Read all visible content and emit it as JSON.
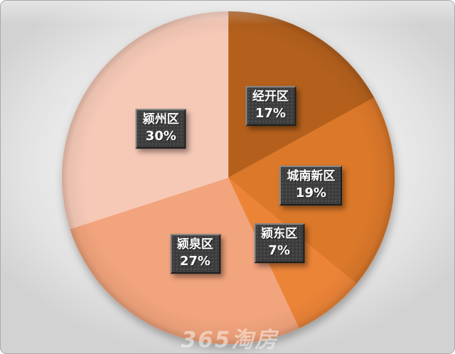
{
  "chart_data": {
    "type": "pie",
    "title": "",
    "legend_position": "none",
    "start_angle_deg": 0,
    "direction": "clockwise",
    "data_labels": "name and percent shown inside each slice",
    "slices": [
      {
        "name": "经开区",
        "value": 17,
        "display": "17%",
        "color": "#b4601f"
      },
      {
        "name": "城南新区",
        "value": 19,
        "display": "19%",
        "color": "#db782c"
      },
      {
        "name": "颍东区",
        "value": 7,
        "display": "7%",
        "color": "#ec8438"
      },
      {
        "name": "颍泉区",
        "value": 27,
        "display": "27%",
        "color": "#f2a47c"
      },
      {
        "name": "颍州区",
        "value": 30,
        "display": "30%",
        "color": "#f6c9b7"
      }
    ]
  },
  "watermark": {
    "text": "365淘房"
  }
}
